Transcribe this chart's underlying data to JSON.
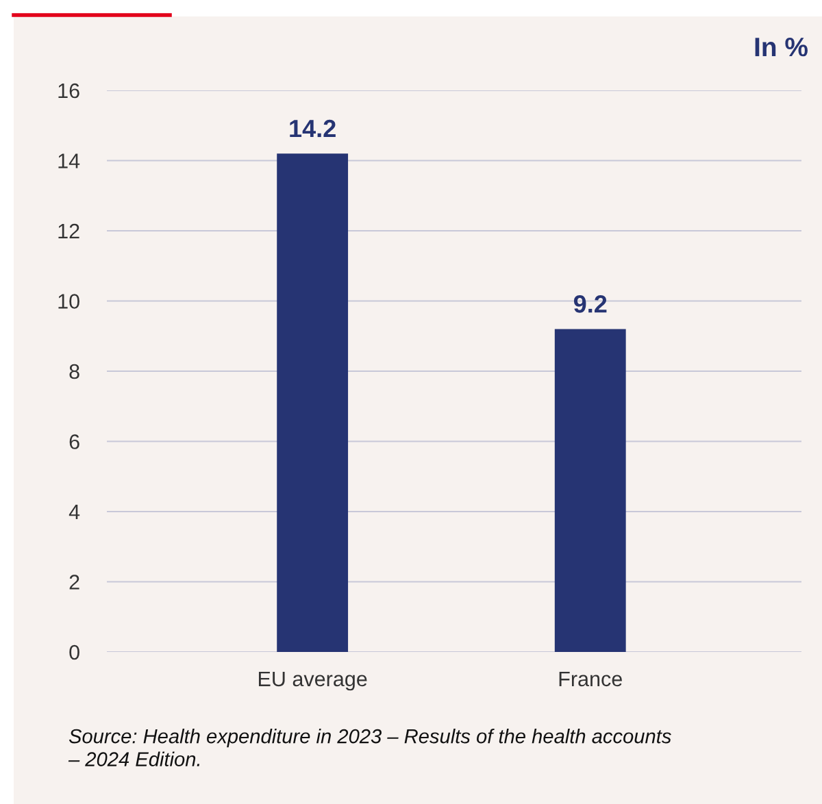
{
  "chart_data": {
    "type": "bar",
    "ylabel": "In %",
    "categories": [
      "EU average",
      "France"
    ],
    "values": [
      14.2,
      9.2
    ],
    "color": "#263473",
    "ylim": [
      0,
      16
    ],
    "yticks": [
      0,
      2,
      4,
      6,
      8,
      10,
      12,
      14,
      16
    ],
    "grid": "y",
    "data_labels": true,
    "annotations": [
      "Source: Health expenditure in 2023 – Results of the health accounts\n– 2024 Edition."
    ]
  }
}
